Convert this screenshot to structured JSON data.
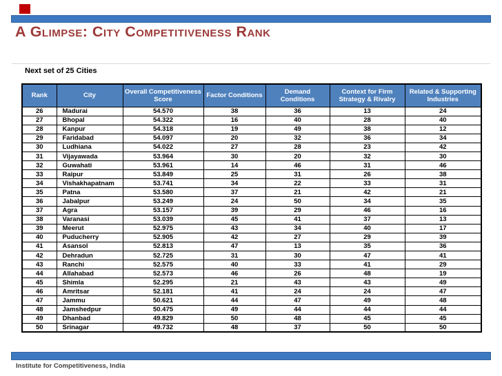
{
  "slide": {
    "title": "A Glimpse: City Competitiveness Rank",
    "subtitle": "Next set of 25 Cities",
    "footer": "Institute for Competitiveness, India"
  },
  "table": {
    "columns": [
      "Rank",
      "City",
      "Overall Competitiveness Score",
      "Factor Conditions",
      "Demand Conditions",
      "Context for Firm Strategy & Rivalry",
      "Related & Supporting Industries"
    ],
    "rows": [
      [
        "26",
        "Madurai",
        "54.570",
        "38",
        "36",
        "13",
        "24"
      ],
      [
        "27",
        "Bhopal",
        "54.322",
        "16",
        "40",
        "28",
        "40"
      ],
      [
        "28",
        "Kanpur",
        "54.318",
        "19",
        "49",
        "38",
        "12"
      ],
      [
        "29",
        "Faridabad",
        "54.097",
        "20",
        "32",
        "36",
        "34"
      ],
      [
        "30",
        "Ludhiana",
        "54.022",
        "27",
        "28",
        "23",
        "42"
      ],
      [
        "31",
        "Vijayawada",
        "53.964",
        "30",
        "20",
        "32",
        "30"
      ],
      [
        "32",
        "Guwahati",
        "53.961",
        "14",
        "46",
        "31",
        "46"
      ],
      [
        "33",
        "Raipur",
        "53.849",
        "25",
        "31",
        "26",
        "38"
      ],
      [
        "34",
        "Vishakhapatnam",
        "53.741",
        "34",
        "22",
        "33",
        "31"
      ],
      [
        "35",
        "Patna",
        "53.580",
        "37",
        "21",
        "42",
        "21"
      ],
      [
        "36",
        "Jabalpur",
        "53.249",
        "24",
        "50",
        "34",
        "35"
      ],
      [
        "37",
        "Agra",
        "53.157",
        "39",
        "29",
        "46",
        "16"
      ],
      [
        "38",
        "Varanasi",
        "53.039",
        "45",
        "41",
        "37",
        "13"
      ],
      [
        "39",
        "Meerut",
        "52.975",
        "43",
        "34",
        "40",
        "17"
      ],
      [
        "40",
        "Puducherry",
        "52.905",
        "42",
        "27",
        "29",
        "39"
      ],
      [
        "41",
        "Asansol",
        "52.813",
        "47",
        "13",
        "35",
        "36"
      ],
      [
        "42",
        "Dehradun",
        "52.725",
        "31",
        "30",
        "47",
        "41"
      ],
      [
        "43",
        "Ranchi",
        "52.575",
        "40",
        "33",
        "41",
        "29"
      ],
      [
        "44",
        "Allahabad",
        "52.573",
        "46",
        "26",
        "48",
        "19"
      ],
      [
        "45",
        "Shimla",
        "52.295",
        "21",
        "43",
        "43",
        "49"
      ],
      [
        "46",
        "Amritsar",
        "52.181",
        "41",
        "24",
        "24",
        "47"
      ],
      [
        "47",
        "Jammu",
        "50.621",
        "44",
        "47",
        "49",
        "48"
      ],
      [
        "48",
        "Jamshedpur",
        "50.475",
        "49",
        "44",
        "44",
        "44"
      ],
      [
        "49",
        "Dhanbad",
        "49.829",
        "50",
        "48",
        "45",
        "45"
      ],
      [
        "50",
        "Srinagar",
        "49.732",
        "48",
        "37",
        "50",
        "50"
      ]
    ]
  },
  "colors": {
    "accent_bar_blue": "#3C79C1",
    "table_header_blue": "#4F81BD",
    "title_red": "#9C3A38",
    "accent_square_red": "#C00000",
    "header_text_white": "#FFFFFF",
    "body_text_black": "#000000",
    "footer_text_gray": "#3F3F3F"
  }
}
